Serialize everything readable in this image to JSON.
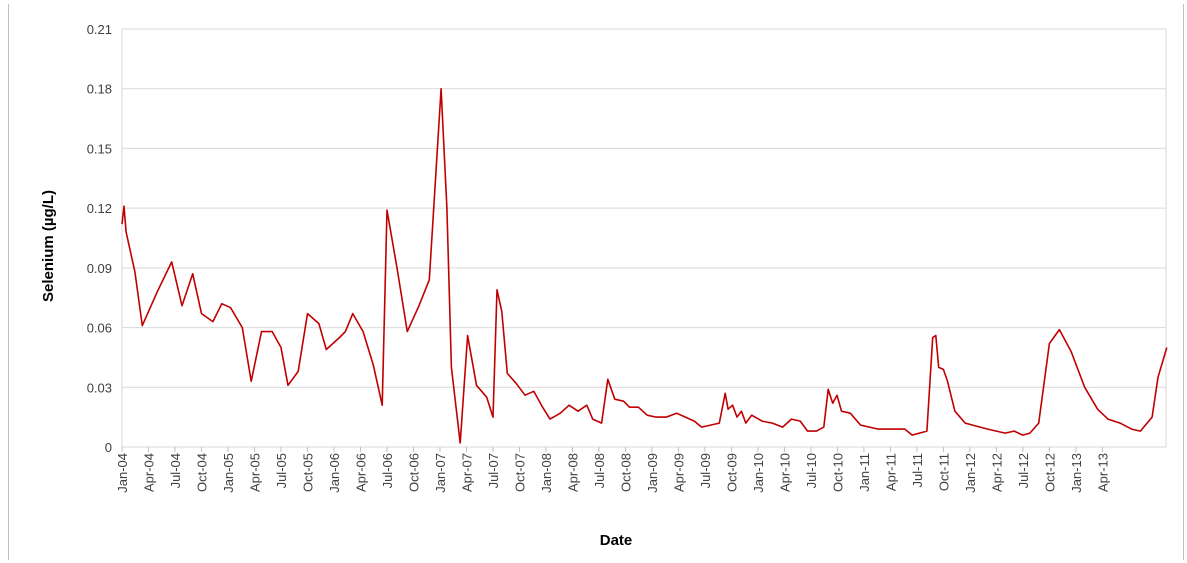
{
  "chart_data": {
    "type": "line",
    "xlabel": "Date",
    "ylabel": "Selenium (µg/L)",
    "ylim": [
      0,
      0.21
    ],
    "yticks": [
      "0",
      "0.03",
      "0.06",
      "0.09",
      "0.12",
      "0.15",
      "0.18",
      "0.21"
    ],
    "xlim": [
      "2004-01",
      "2013-07"
    ],
    "xticks": [
      "Jan-04",
      "Apr-04",
      "Jul-04",
      "Oct-04",
      "Jan-05",
      "Apr-05",
      "Jul-05",
      "Oct-05",
      "Jan-06",
      "Apr-06",
      "Jul-06",
      "Oct-06",
      "Jan-07",
      "Apr-07",
      "Jul-07",
      "Oct-07",
      "Jan-08",
      "Apr-08",
      "Jul-08",
      "Oct-08",
      "Jan-09",
      "Apr-09",
      "Jul-09",
      "Oct-09",
      "Jan-10",
      "Apr-10",
      "Jul-10",
      "Oct-10",
      "Jan-11",
      "Apr-11",
      "Jul-11",
      "Oct-11",
      "Jan-12",
      "Apr-12",
      "Jul-12",
      "Oct-12",
      "Jan-13",
      "Apr-13"
    ],
    "grid": true,
    "line_color": "#c00000",
    "series": [
      {
        "values": [
          [
            "2004-01-01",
            0.112
          ],
          [
            "2004-01-08",
            0.121
          ],
          [
            "2004-01-15",
            0.108
          ],
          [
            "2004-02-15",
            0.088
          ],
          [
            "2004-03-10",
            0.061
          ],
          [
            "2004-05-01",
            0.078
          ],
          [
            "2004-06-20",
            0.093
          ],
          [
            "2004-07-25",
            0.071
          ],
          [
            "2004-09-01",
            0.087
          ],
          [
            "2004-10-01",
            0.067
          ],
          [
            "2004-11-10",
            0.063
          ],
          [
            "2004-12-10",
            0.072
          ],
          [
            "2005-01-10",
            0.07
          ],
          [
            "2005-02-20",
            0.06
          ],
          [
            "2005-03-20",
            0.033
          ],
          [
            "2005-04-25",
            0.058
          ],
          [
            "2005-06-01",
            0.058
          ],
          [
            "2005-07-01",
            0.05
          ],
          [
            "2005-07-25",
            0.031
          ],
          [
            "2005-08-30",
            0.038
          ],
          [
            "2005-10-01",
            0.067
          ],
          [
            "2005-11-10",
            0.062
          ],
          [
            "2005-12-05",
            0.049
          ],
          [
            "2006-01-20",
            0.055
          ],
          [
            "2006-02-10",
            0.058
          ],
          [
            "2006-03-05",
            0.067
          ],
          [
            "2006-04-10",
            0.058
          ],
          [
            "2006-05-15",
            0.041
          ],
          [
            "2006-06-15",
            0.021
          ],
          [
            "2006-07-01",
            0.119
          ],
          [
            "2006-08-05",
            0.09
          ],
          [
            "2006-09-10",
            0.058
          ],
          [
            "2006-10-20",
            0.071
          ],
          [
            "2006-11-25",
            0.084
          ],
          [
            "2007-01-05",
            0.18
          ],
          [
            "2007-01-25",
            0.12
          ],
          [
            "2007-02-10",
            0.04
          ],
          [
            "2007-03-10",
            0.002
          ],
          [
            "2007-04-05",
            0.056
          ],
          [
            "2007-05-05",
            0.031
          ],
          [
            "2007-06-10",
            0.025
          ],
          [
            "2007-07-01",
            0.015
          ],
          [
            "2007-07-15",
            0.079
          ],
          [
            "2007-08-01",
            0.068
          ],
          [
            "2007-08-20",
            0.037
          ],
          [
            "2007-09-20",
            0.032
          ],
          [
            "2007-10-20",
            0.026
          ],
          [
            "2007-11-20",
            0.028
          ],
          [
            "2007-12-20",
            0.02
          ],
          [
            "2008-01-15",
            0.014
          ],
          [
            "2008-02-20",
            0.017
          ],
          [
            "2008-03-20",
            0.021
          ],
          [
            "2008-04-20",
            0.018
          ],
          [
            "2008-05-20",
            0.021
          ],
          [
            "2008-06-10",
            0.014
          ],
          [
            "2008-07-10",
            0.012
          ],
          [
            "2008-08-01",
            0.034
          ],
          [
            "2008-08-25",
            0.024
          ],
          [
            "2008-09-25",
            0.023
          ],
          [
            "2008-10-15",
            0.02
          ],
          [
            "2008-11-15",
            0.02
          ],
          [
            "2008-12-15",
            0.016
          ],
          [
            "2009-01-15",
            0.015
          ],
          [
            "2009-02-20",
            0.015
          ],
          [
            "2009-03-25",
            0.017
          ],
          [
            "2009-04-25",
            0.015
          ],
          [
            "2009-05-25",
            0.013
          ],
          [
            "2009-06-20",
            0.01
          ],
          [
            "2009-07-20",
            0.011
          ],
          [
            "2009-08-20",
            0.012
          ],
          [
            "2009-09-10",
            0.027
          ],
          [
            "2009-09-20",
            0.019
          ],
          [
            "2009-10-05",
            0.021
          ],
          [
            "2009-10-20",
            0.015
          ],
          [
            "2009-11-05",
            0.018
          ],
          [
            "2009-11-20",
            0.012
          ],
          [
            "2009-12-10",
            0.016
          ],
          [
            "2010-01-15",
            0.013
          ],
          [
            "2010-02-20",
            0.012
          ],
          [
            "2010-03-25",
            0.01
          ],
          [
            "2010-04-25",
            0.014
          ],
          [
            "2010-05-25",
            0.013
          ],
          [
            "2010-06-20",
            0.008
          ],
          [
            "2010-07-20",
            0.008
          ],
          [
            "2010-08-15",
            0.01
          ],
          [
            "2010-08-30",
            0.029
          ],
          [
            "2010-09-15",
            0.022
          ],
          [
            "2010-09-30",
            0.026
          ],
          [
            "2010-10-15",
            0.018
          ],
          [
            "2010-11-15",
            0.017
          ],
          [
            "2010-12-20",
            0.011
          ],
          [
            "2011-02-20",
            0.009
          ],
          [
            "2011-05-20",
            0.009
          ],
          [
            "2011-06-15",
            0.006
          ],
          [
            "2011-07-10",
            0.007
          ],
          [
            "2011-08-05",
            0.008
          ],
          [
            "2011-08-25",
            0.055
          ],
          [
            "2011-09-05",
            0.056
          ],
          [
            "2011-09-15",
            0.04
          ],
          [
            "2011-10-01",
            0.039
          ],
          [
            "2011-10-15",
            0.033
          ],
          [
            "2011-11-10",
            0.018
          ],
          [
            "2011-12-15",
            0.012
          ],
          [
            "2012-03-01",
            0.009
          ],
          [
            "2012-05-01",
            0.007
          ],
          [
            "2012-06-01",
            0.008
          ],
          [
            "2012-07-01",
            0.006
          ],
          [
            "2012-07-25",
            0.007
          ],
          [
            "2012-08-25",
            0.012
          ],
          [
            "2012-10-01",
            0.052
          ],
          [
            "2012-11-05",
            0.059
          ],
          [
            "2012-12-15",
            0.048
          ],
          [
            "2013-02-01",
            0.03
          ],
          [
            "2013-03-15",
            0.019
          ],
          [
            "2013-04-20",
            0.014
          ],
          [
            "2013-06-01",
            0.012
          ],
          [
            "2013-07-10",
            0.009
          ],
          [
            "2013-08-10",
            0.008
          ],
          [
            "2013-09-20",
            0.015
          ],
          [
            "2013-10-10",
            0.035
          ],
          [
            "2013-11-10",
            0.05
          ]
        ]
      }
    ]
  }
}
